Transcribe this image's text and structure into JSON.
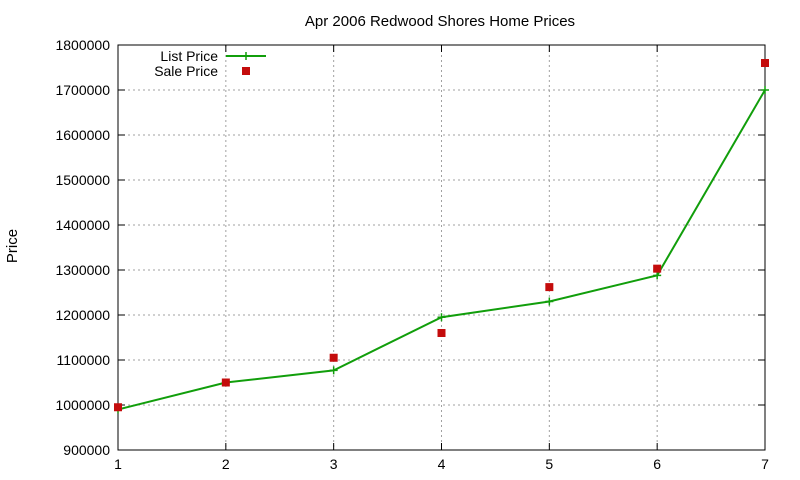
{
  "chart_data": {
    "type": "line",
    "title": "Apr 2006 Redwood Shores Home Prices",
    "xlabel": "",
    "ylabel": "Price",
    "xlim": [
      1,
      7
    ],
    "ylim": [
      900000,
      1800000
    ],
    "x_ticks": [
      1,
      2,
      3,
      4,
      5,
      6,
      7
    ],
    "y_ticks": [
      900000,
      1000000,
      1100000,
      1200000,
      1300000,
      1400000,
      1500000,
      1600000,
      1700000,
      1800000
    ],
    "grid": true,
    "legend_position": "top-left",
    "series": [
      {
        "name": "List Price",
        "style": "line-with-plus-markers",
        "color": "#119e0b",
        "x": [
          1,
          2,
          3,
          4,
          5,
          6,
          7
        ],
        "values": [
          990000,
          1050000,
          1077000,
          1195000,
          1230000,
          1288000,
          1700000
        ]
      },
      {
        "name": "Sale Price",
        "style": "square-markers",
        "color": "#c40c0c",
        "x": [
          1,
          2,
          3,
          4,
          5,
          6,
          7
        ],
        "values": [
          995000,
          1050000,
          1105000,
          1160000,
          1262000,
          1303000,
          1760000
        ]
      }
    ]
  }
}
